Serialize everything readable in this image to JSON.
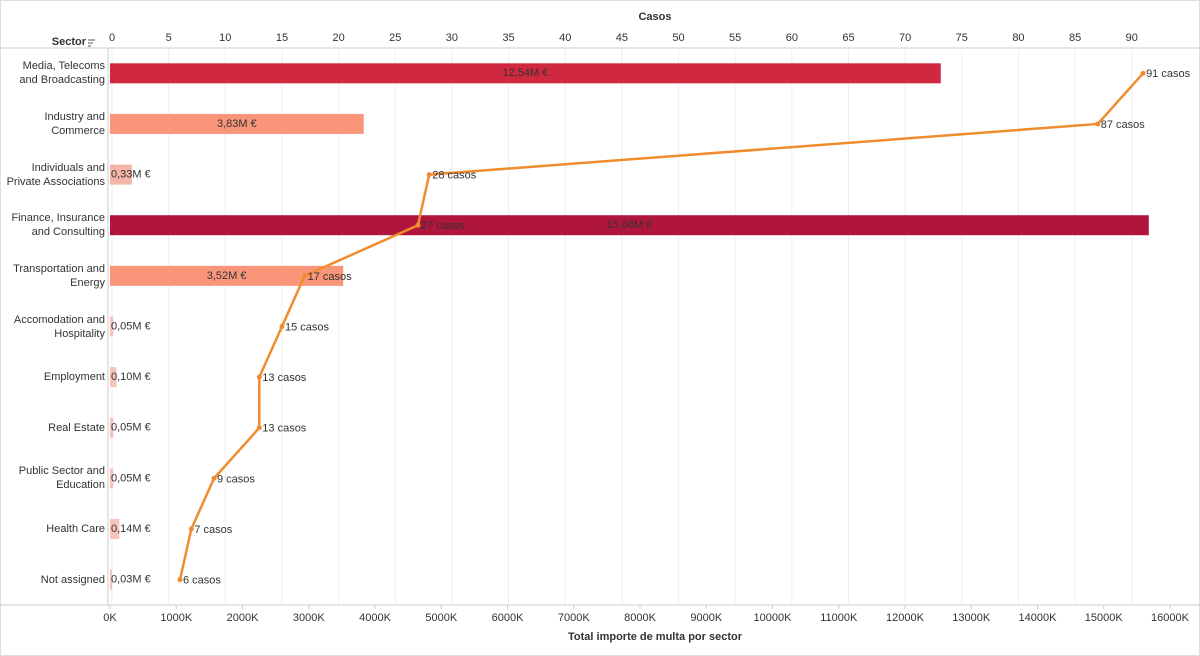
{
  "chart_data": {
    "type": "bar-line",
    "x_title": "Total importe de multa por sector",
    "x2_title": "Casos",
    "y_title": "Sector",
    "categories": [
      "Media, Telecoms and Broadcasting",
      "Industry and Commerce",
      "Individuals and Private Associations",
      "Finance, Insurance and Consulting",
      "Transportation and Energy",
      "Accomodation and Hospitality",
      "Employment",
      "Real Estate",
      "Public Sector and Education",
      "Health Care",
      "Not assigned"
    ],
    "series": [
      {
        "name": "Total importe de multa por sector",
        "type": "bar",
        "colors": [
          "#d0283e",
          "#f9967a",
          "#f4b5a8",
          "#b0163c",
          "#f9967a",
          "#f6c4bc",
          "#f6c4bc",
          "#f6c4bc",
          "#f6c4bc",
          "#f6c4bc",
          "#f6c4bc"
        ],
        "values": [
          12540,
          3830,
          330,
          15680,
          3520,
          50,
          100,
          50,
          50,
          140,
          30
        ],
        "value_labels": [
          "12,54M €",
          "3,83M €",
          "0,33M €",
          "15,68M €",
          "3,52M €",
          "0,05M €",
          "0,10M €",
          "0,05M €",
          "0,05M €",
          "0,14M €",
          "0,03M €"
        ]
      },
      {
        "name": "Casos",
        "type": "line",
        "axis": "x2",
        "color": "#f08c2e",
        "values": [
          91,
          87,
          28,
          27,
          17,
          15,
          13,
          13,
          9,
          7,
          6
        ],
        "value_labels": [
          "91 casos",
          "87 casos",
          "28 casos",
          "27 casos",
          "17 casos",
          "15 casos",
          "13 casos",
          "13 casos",
          "9 casos",
          "7 casos",
          "6 casos"
        ]
      }
    ],
    "xlim": [
      0,
      16226
    ],
    "xticks": [
      {
        "value": 0,
        "label": "0K"
      },
      {
        "value": 1000,
        "label": "1000K"
      },
      {
        "value": 2000,
        "label": "2000K"
      },
      {
        "value": 3000,
        "label": "3000K"
      },
      {
        "value": 4000,
        "label": "4000K"
      },
      {
        "value": 5000,
        "label": "5000K"
      },
      {
        "value": 6000,
        "label": "6000K"
      },
      {
        "value": 7000,
        "label": "7000K"
      },
      {
        "value": 8000,
        "label": "8000K"
      },
      {
        "value": 9000,
        "label": "9000K"
      },
      {
        "value": 10000,
        "label": "10000K"
      },
      {
        "value": 11000,
        "label": "11000K"
      },
      {
        "value": 12000,
        "label": "12000K"
      },
      {
        "value": 13000,
        "label": "13000K"
      },
      {
        "value": 14000,
        "label": "14000K"
      },
      {
        "value": 15000,
        "label": "15000K"
      },
      {
        "value": 16000,
        "label": "16000K"
      }
    ],
    "x2lim": [
      0,
      94.7
    ],
    "x2ticks": [
      0,
      5,
      10,
      15,
      20,
      25,
      30,
      35,
      40,
      45,
      50,
      55,
      60,
      65,
      70,
      75,
      80,
      85,
      90
    ],
    "grid": true
  }
}
